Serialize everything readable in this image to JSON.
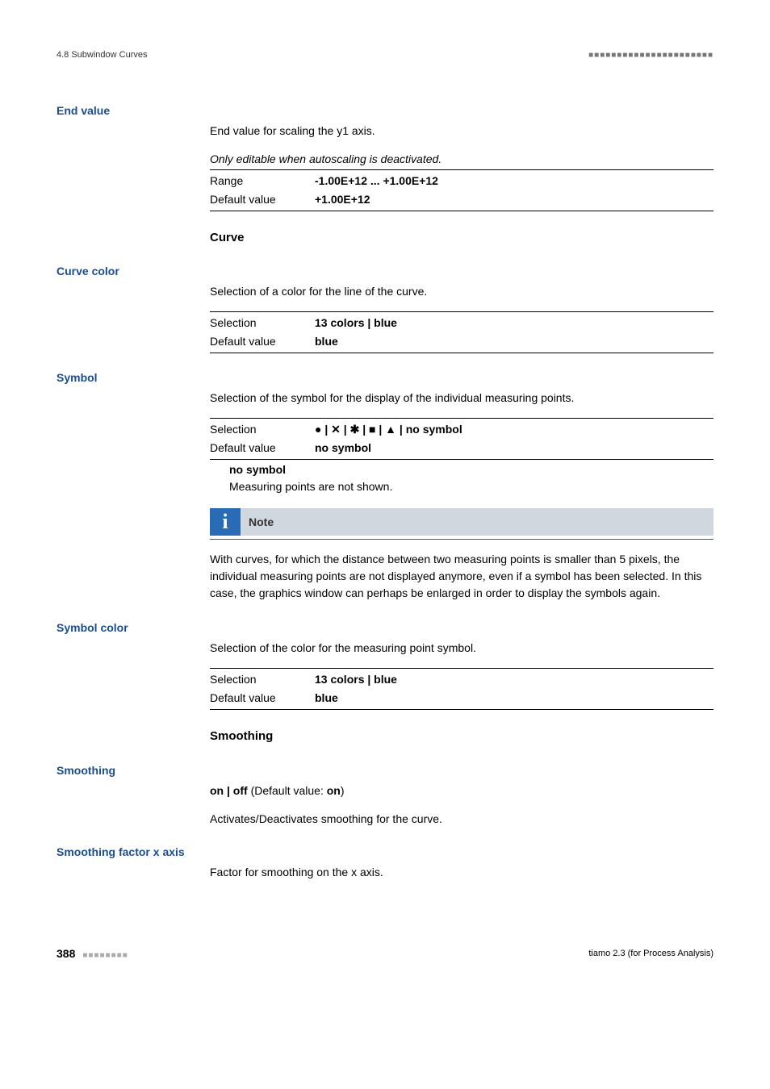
{
  "header": {
    "section": "4.8 Subwindow Curves",
    "dots": "■■■■■■■■■■■■■■■■■■■■■■"
  },
  "end_value": {
    "label": "End value",
    "desc": "End value for scaling the y1 axis.",
    "italic": "Only editable when autoscaling is deactivated.",
    "range_label": "Range",
    "range_val": "-1.00E+12 ... +1.00E+12",
    "default_label": "Default value",
    "default_val": "+1.00E+12"
  },
  "curve_header": "Curve",
  "curve_color": {
    "label": "Curve color",
    "desc": "Selection of a color for the line of the curve.",
    "sel_label": "Selection",
    "sel_val": "13 colors | blue",
    "default_label": "Default value",
    "default_val": "blue"
  },
  "symbol": {
    "label": "Symbol",
    "desc": "Selection of the symbol for the display of the individual measuring points.",
    "sel_label": "Selection",
    "sel_val": "● | ✕ | ✱ | ■ | ▲ | no symbol",
    "default_label": "Default value",
    "default_val": "no symbol",
    "sub_label": "no symbol",
    "sub_desc": "Measuring points are not shown."
  },
  "note": {
    "title": "Note",
    "body": "With curves, for which the distance between two measuring points is smaller than 5 pixels, the individual measuring points are not displayed anymore, even if a symbol has been selected. In this case, the graphics window can perhaps be enlarged in order to display the symbols again."
  },
  "symbol_color": {
    "label": "Symbol color",
    "desc": "Selection of the color for the measuring point symbol.",
    "sel_label": "Selection",
    "sel_val": "13 colors | blue",
    "default_label": "Default value",
    "default_val": "blue"
  },
  "smoothing_header": "Smoothing",
  "smoothing": {
    "label": "Smoothing",
    "opt": "on | off",
    "default_text": " (Default value: ",
    "default_val": "on",
    "close": ")",
    "desc": "Activates/Deactivates smoothing for the curve."
  },
  "smoothing_factor": {
    "label": "Smoothing factor x axis",
    "desc": "Factor for smoothing on the x axis."
  },
  "footer": {
    "page": "388",
    "dots": "■■■■■■■■",
    "product": "tiamo 2.3 (for Process Analysis)"
  }
}
